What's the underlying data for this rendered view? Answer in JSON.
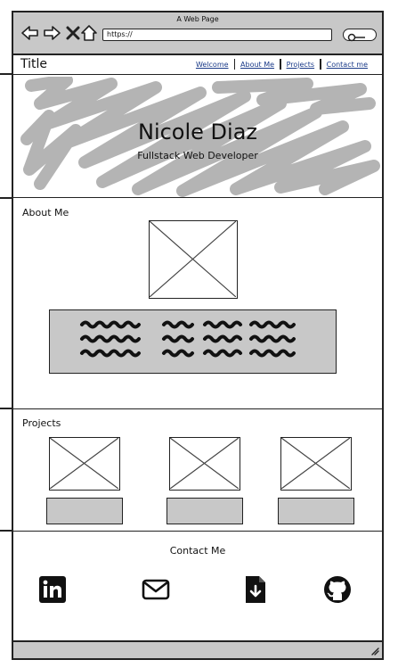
{
  "window": {
    "title": "A Web Page",
    "url": "https://"
  },
  "header": {
    "site_title": "Title",
    "nav": [
      "Welcome",
      "About Me",
      "Projects",
      "Contact me"
    ]
  },
  "hero": {
    "name": "Nicole Diaz",
    "role": "Fullstack Web Developer"
  },
  "about": {
    "title": "About Me"
  },
  "projects": {
    "title": "Projects"
  },
  "contact": {
    "title": "Contact Me"
  },
  "icons": {
    "social": [
      "linkedin-icon",
      "mail-icon",
      "resume-download-icon",
      "github-icon"
    ]
  },
  "colors": {
    "placeholder_gray": "#c8c8c8",
    "link": "#1a3a88",
    "scribble": "#b4b4b4"
  }
}
